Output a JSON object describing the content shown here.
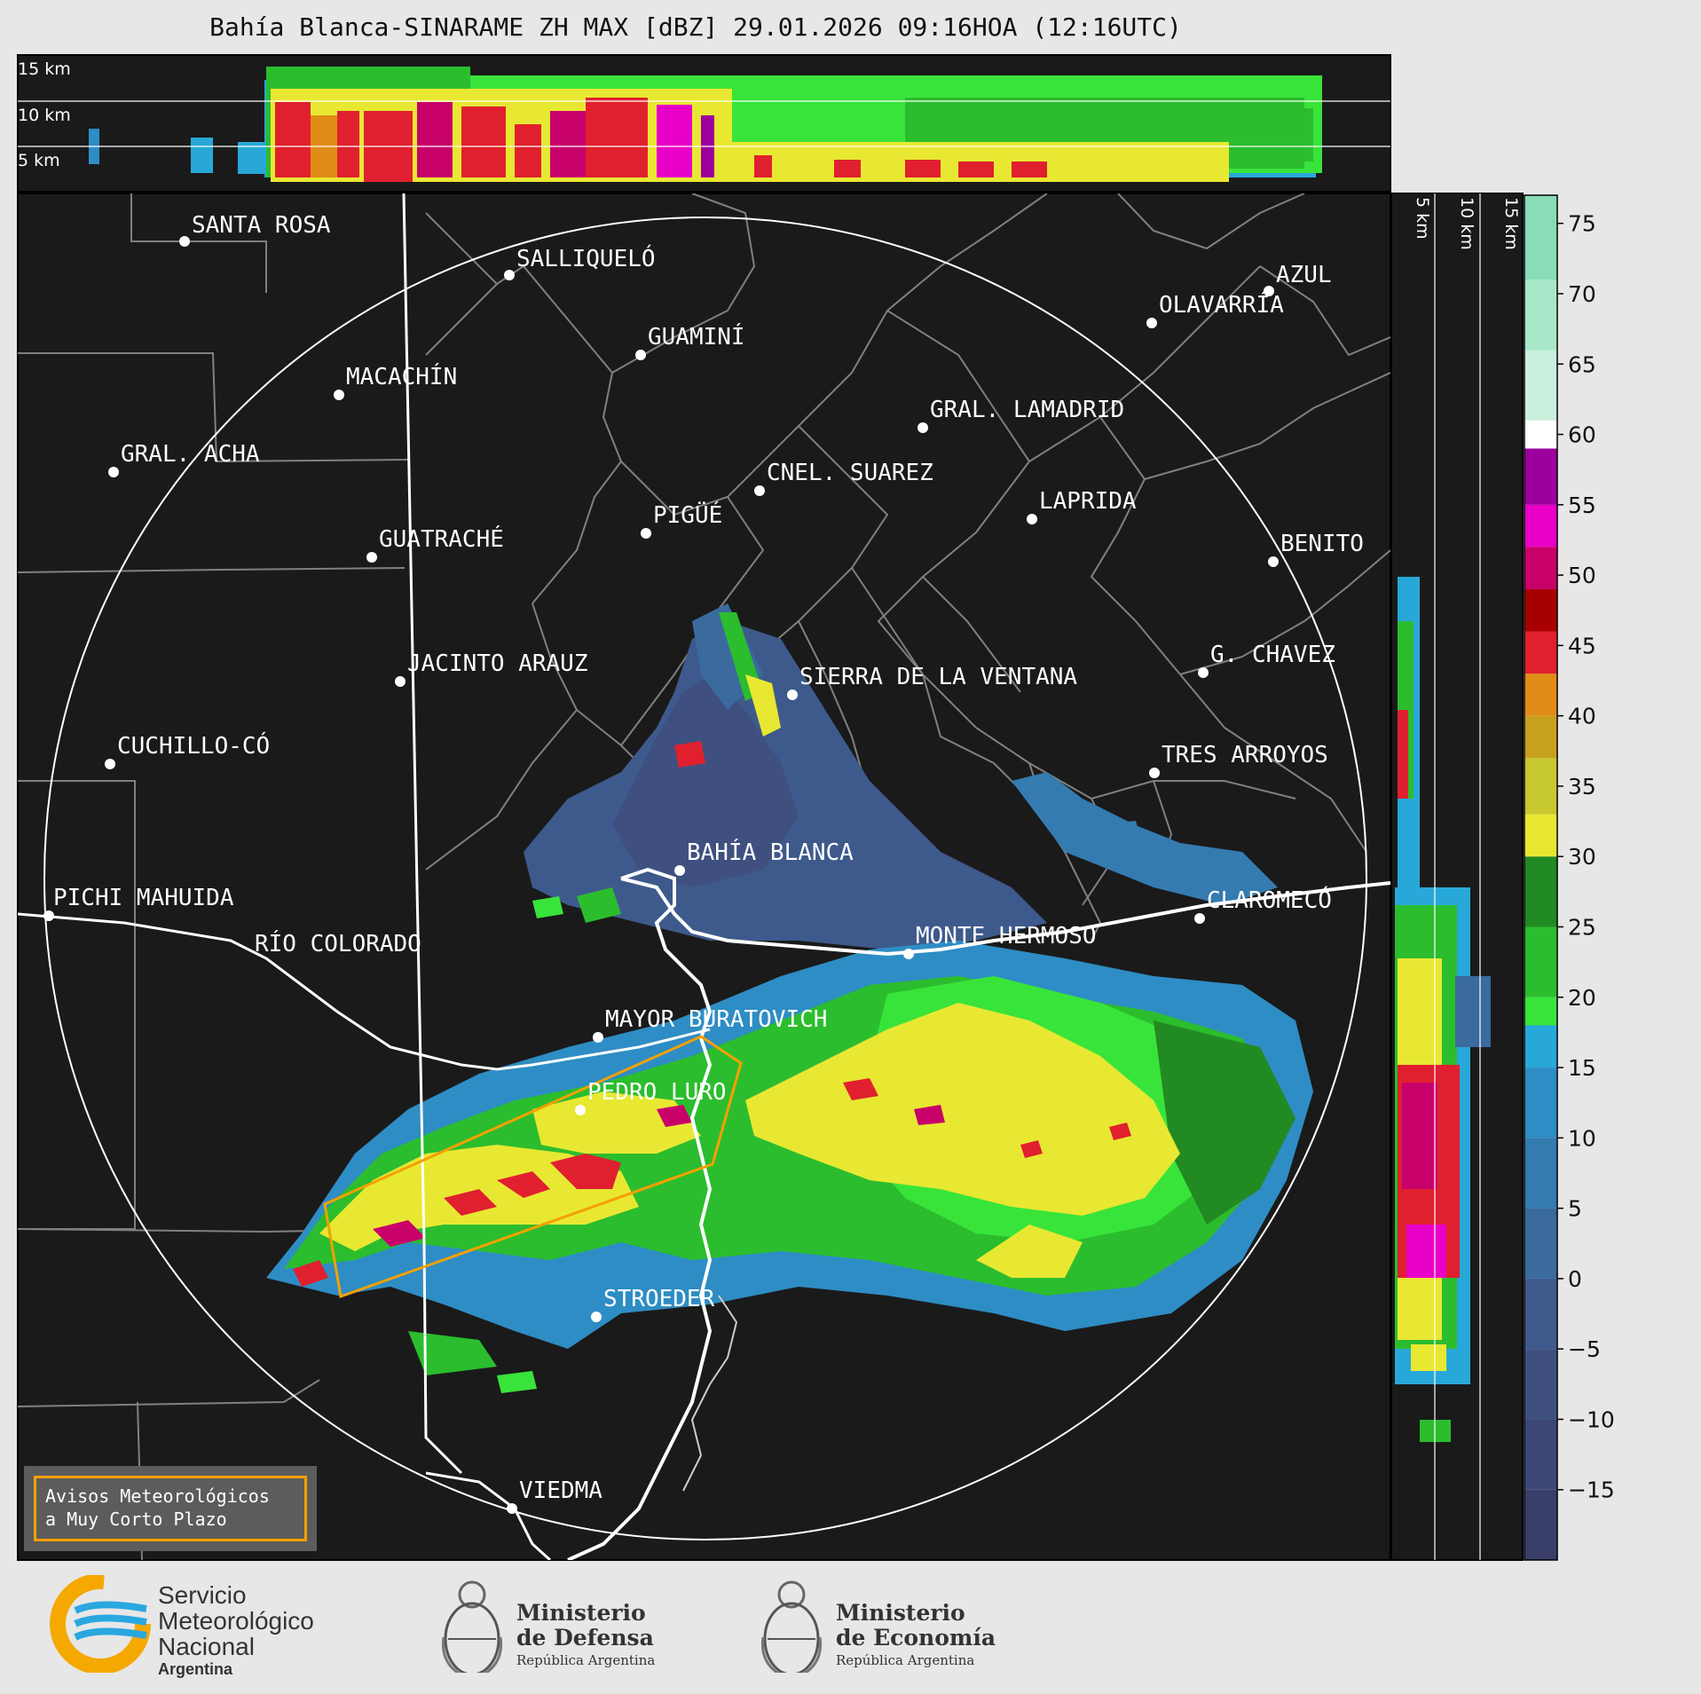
{
  "title": "Bahía Blanca-SINARAME ZH MAX [dBZ] 29.01.2026 09:16HOA (12:16UTC)",
  "top_panel": {
    "height_labels": [
      "15 km",
      "10 km",
      "5 km"
    ]
  },
  "side_panel": {
    "height_labels": [
      "5 km",
      "10 km",
      "15 km"
    ]
  },
  "cities": [
    {
      "name": "SANTA ROSA"
    },
    {
      "name": "SALLIQUELÓ"
    },
    {
      "name": "AZUL"
    },
    {
      "name": "OLAVARRÍA"
    },
    {
      "name": "GUAMINÍ"
    },
    {
      "name": "MACACHÍN"
    },
    {
      "name": "GRAL. LAMADRID"
    },
    {
      "name": "GRAL. ACHA"
    },
    {
      "name": "CNEL. SUAREZ"
    },
    {
      "name": "LAPRIDA"
    },
    {
      "name": "PIGÜÉ"
    },
    {
      "name": "GUATRACHÉ"
    },
    {
      "name": "BENITO"
    },
    {
      "name": "JACINTO ARAUZ"
    },
    {
      "name": "SIERRA DE LA VENTANA"
    },
    {
      "name": "G. CHAVEZ"
    },
    {
      "name": "CUCHILLO-CÓ"
    },
    {
      "name": "TRES ARROYOS"
    },
    {
      "name": "BAHÍA BLANCA"
    },
    {
      "name": "PICHI MAHUIDA"
    },
    {
      "name": "CLAROMECÓ"
    },
    {
      "name": "MONTE HERMOSO"
    },
    {
      "name": "RÍO COLORADO"
    },
    {
      "name": "MAYOR BURATOVICH"
    },
    {
      "name": "PEDRO LURO"
    },
    {
      "name": "STROEDER"
    },
    {
      "name": "VIEDMA"
    }
  ],
  "colorbar": {
    "ticks": [
      "75",
      "70",
      "65",
      "60",
      "55",
      "50",
      "45",
      "40",
      "35",
      "30",
      "25",
      "20",
      "15",
      "10",
      "5",
      "0",
      "−5",
      "−10",
      "−15"
    ],
    "min": -20,
    "max": 77,
    "bands": [
      {
        "from": -20,
        "to": -15,
        "color": "#3a3f6a"
      },
      {
        "from": -15,
        "to": -10,
        "color": "#3d4776"
      },
      {
        "from": -10,
        "to": -5,
        "color": "#3f5080"
      },
      {
        "from": -5,
        "to": 0,
        "color": "#3e5a8c"
      },
      {
        "from": 0,
        "to": 5,
        "color": "#3a6a9e"
      },
      {
        "from": 5,
        "to": 10,
        "color": "#347bb0"
      },
      {
        "from": 10,
        "to": 15,
        "color": "#2e8dc4"
      },
      {
        "from": 15,
        "to": 18,
        "color": "#28a8d8"
      },
      {
        "from": 18,
        "to": 20,
        "color": "#39e43a"
      },
      {
        "from": 20,
        "to": 25,
        "color": "#2bbd2e"
      },
      {
        "from": 25,
        "to": 30,
        "color": "#228a22"
      },
      {
        "from": 30,
        "to": 33,
        "color": "#e8e832"
      },
      {
        "from": 33,
        "to": 37,
        "color": "#c8c830"
      },
      {
        "from": 37,
        "to": 40,
        "color": "#c8a020"
      },
      {
        "from": 40,
        "to": 43,
        "color": "#e08c18"
      },
      {
        "from": 43,
        "to": 46,
        "color": "#e0202e"
      },
      {
        "from": 46,
        "to": 49,
        "color": "#a80000"
      },
      {
        "from": 49,
        "to": 52,
        "color": "#c8006a"
      },
      {
        "from": 52,
        "to": 55,
        "color": "#e800c8"
      },
      {
        "from": 55,
        "to": 59,
        "color": "#9c009c"
      },
      {
        "from": 59,
        "to": 61,
        "color": "#ffffff"
      },
      {
        "from": 61,
        "to": 66,
        "color": "#c8f0dc"
      },
      {
        "from": 66,
        "to": 71,
        "color": "#a8e8c8"
      },
      {
        "from": 71,
        "to": 77,
        "color": "#88dcb8"
      }
    ]
  },
  "notice": {
    "line1": "Avisos Meteorológicos",
    "line2": "a Muy Corto Plazo"
  },
  "logos": {
    "smn_line1": "Servicio",
    "smn_line2": "Meteorológico",
    "smn_line3": "Nacional",
    "smn_country": "Argentina",
    "defensa_line1": "Ministerio",
    "defensa_line2": "de Defensa",
    "defensa_line3": "República Argentina",
    "economia_line1": "Ministerio",
    "economia_line2": "de Economía",
    "economia_line3": "República Argentina"
  },
  "colors": {
    "background": "#e7e7e7",
    "map_background": "#1a1a1a",
    "warning_polygon": "#f5a000",
    "range_ring": "#ffffff",
    "coast": "#ffffff"
  }
}
